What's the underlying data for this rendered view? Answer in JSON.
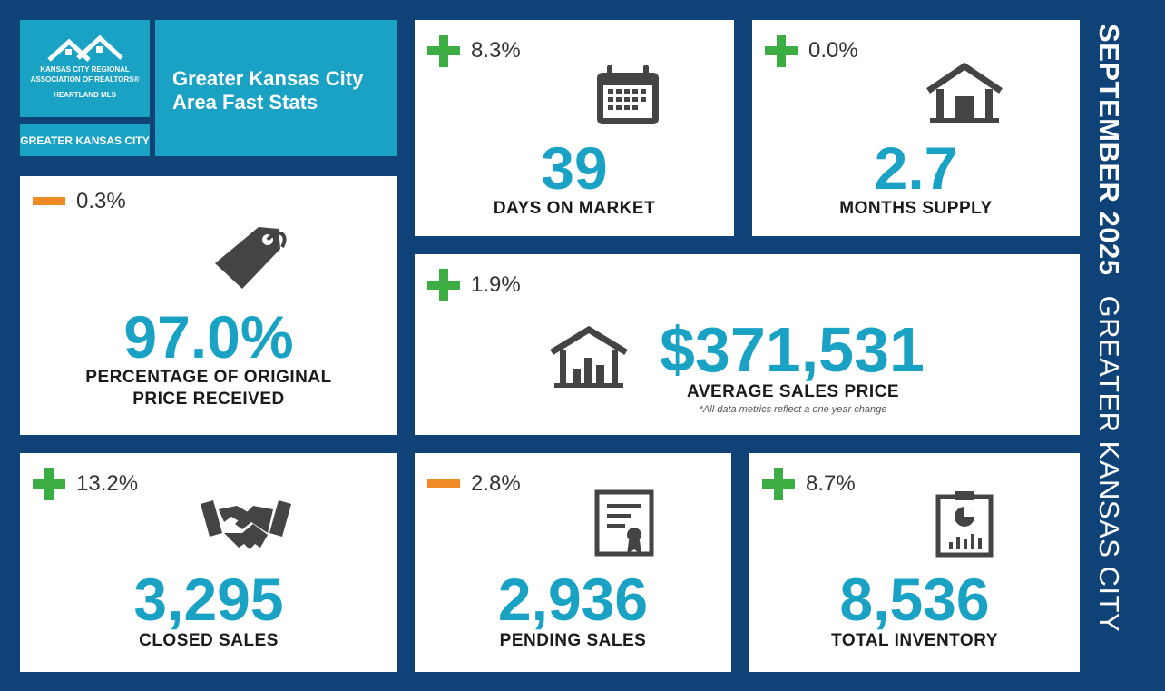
{
  "logo": {
    "org_line1": "KANSAS CITY REGIONAL",
    "org_line2": "ASSOCIATION OF REALTORS®",
    "org_line3": "HEARTLAND MLS"
  },
  "region_badge": "GREATER KANSAS CITY",
  "header_title": "Greater Kansas City Area Fast Stats",
  "sidebar": {
    "month": "SEPTEMBER 2025",
    "area": "GREATER KANSAS CITY"
  },
  "colors": {
    "background": "#0f4277",
    "teal": "#1aa2c4",
    "increase": "#3cad43",
    "decrease": "#f08a24"
  },
  "footnote": "*All data metrics reflect a one year change",
  "stats": {
    "days_on_market": {
      "direction": "increase",
      "change": "8.3%",
      "value": "39",
      "label": "DAYS ON MARKET",
      "icon": "calendar-icon"
    },
    "months_supply": {
      "direction": "increase",
      "change": "0.0%",
      "value": "2.7",
      "label": "MONTHS SUPPLY",
      "icon": "house-icon"
    },
    "pct_original": {
      "direction": "decrease",
      "change": "0.3%",
      "value": "97.0%",
      "label_line1": "PERCENTAGE OF ORIGINAL",
      "label_line2": "PRICE RECEIVED",
      "icon": "price-tag-icon"
    },
    "avg_price": {
      "direction": "increase",
      "change": "1.9%",
      "value": "$371,531",
      "label": "AVERAGE SALES PRICE",
      "icon": "house-chart-icon"
    },
    "closed_sales": {
      "direction": "increase",
      "change": "13.2%",
      "value": "3,295",
      "label": "CLOSED SALES",
      "icon": "handshake-icon"
    },
    "pending_sales": {
      "direction": "decrease",
      "change": "2.8%",
      "value": "2,936",
      "label": "PENDING SALES",
      "icon": "certificate-icon"
    },
    "total_inventory": {
      "direction": "increase",
      "change": "8.7%",
      "value": "8,536",
      "label": "TOTAL INVENTORY",
      "icon": "clipboard-chart-icon"
    }
  }
}
